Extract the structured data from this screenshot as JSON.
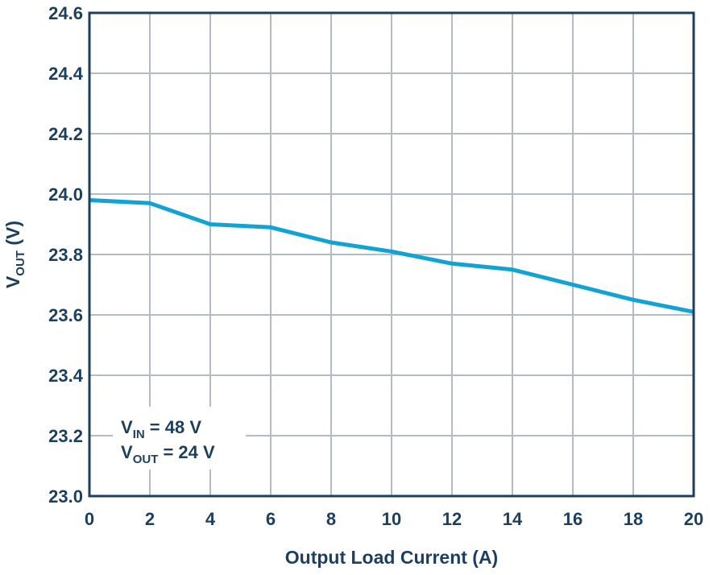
{
  "chart_data": {
    "type": "line",
    "xlabel": "Output Load Current (A)",
    "ylabel": {
      "main": "V",
      "sub": "OUT",
      "suffix": " (V)"
    },
    "xlim": [
      0,
      20
    ],
    "ylim": [
      23.0,
      24.6
    ],
    "xticks": [
      0,
      2,
      4,
      6,
      8,
      10,
      12,
      14,
      16,
      18,
      20
    ],
    "xtick_labels": [
      "0",
      "2",
      "4",
      "6",
      "8",
      "10",
      "12",
      "14",
      "16",
      "18",
      "20"
    ],
    "yticks": [
      23.0,
      23.2,
      23.4,
      23.6,
      23.8,
      24.0,
      24.2,
      24.4,
      24.6
    ],
    "ytick_labels": [
      "23.0",
      "23.2",
      "23.4",
      "23.6",
      "23.8",
      "24.0",
      "24.2",
      "24.4",
      "24.6"
    ],
    "grid": true,
    "series": [
      {
        "x": [
          0,
          2,
          4,
          6,
          8,
          10,
          12,
          14,
          16,
          18,
          20
        ],
        "y": [
          23.98,
          23.97,
          23.9,
          23.89,
          23.84,
          23.81,
          23.77,
          23.75,
          23.7,
          23.65,
          23.61
        ],
        "color": "#12a3d4"
      }
    ],
    "annotations": [
      {
        "main": "V",
        "sub": "IN",
        "text": " = 48 V"
      },
      {
        "main": "V",
        "sub": "OUT",
        "text": " = 24 V"
      }
    ]
  },
  "colors": {
    "line": "#12a3d4",
    "frame": "#1d3f5e",
    "grid": "#b3bcc6",
    "text": "#1d3f5e"
  }
}
